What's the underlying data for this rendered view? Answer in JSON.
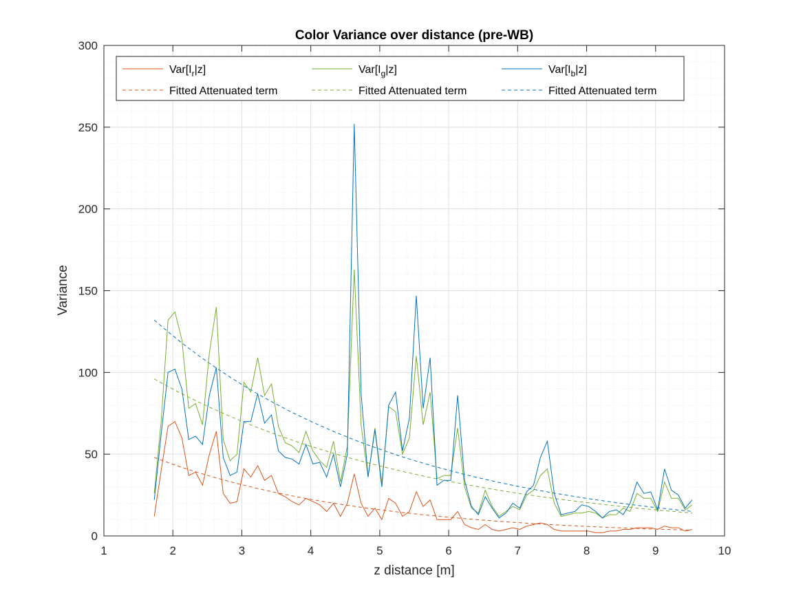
{
  "chart_data": {
    "type": "line",
    "title": "Color Variance over distance (pre-WB)",
    "xlabel": "z distance [m]",
    "ylabel": "Variance",
    "xlim": [
      1,
      10
    ],
    "ylim": [
      0,
      300
    ],
    "xticks": [
      1,
      2,
      3,
      4,
      5,
      6,
      7,
      8,
      9,
      10
    ],
    "yticks": [
      0,
      50,
      100,
      150,
      200,
      250,
      300
    ],
    "grid": "major and minor",
    "legend_position": "top",
    "x": [
      1.73,
      1.83,
      1.93,
      2.03,
      2.13,
      2.23,
      2.33,
      2.43,
      2.53,
      2.63,
      2.73,
      2.83,
      2.93,
      3.03,
      3.13,
      3.23,
      3.33,
      3.43,
      3.53,
      3.63,
      3.73,
      3.83,
      3.93,
      4.03,
      4.13,
      4.23,
      4.33,
      4.43,
      4.53,
      4.63,
      4.73,
      4.83,
      4.93,
      5.03,
      5.13,
      5.23,
      5.33,
      5.43,
      5.53,
      5.63,
      5.73,
      5.83,
      5.93,
      6.03,
      6.13,
      6.23,
      6.33,
      6.43,
      6.53,
      6.63,
      6.73,
      6.83,
      6.93,
      7.03,
      7.13,
      7.23,
      7.33,
      7.43,
      7.53,
      7.63,
      7.73,
      7.83,
      7.93,
      8.03,
      8.13,
      8.23,
      8.33,
      8.43,
      8.53,
      8.63,
      8.73,
      8.83,
      8.93,
      9.03,
      9.13,
      9.23,
      9.33,
      9.43,
      9.53
    ],
    "series": [
      {
        "name": "Var[I_r|z]",
        "label_main": "Var[I",
        "label_sub": "r",
        "label_end": "|z]",
        "color": "#D95319",
        "style": "solid",
        "values": [
          12,
          40,
          67,
          70,
          60,
          37,
          39,
          31,
          50,
          64,
          26,
          20,
          21,
          41,
          36,
          43,
          34,
          37,
          26,
          24,
          21,
          19,
          23,
          21,
          19,
          15,
          20,
          12,
          20,
          38,
          20,
          12,
          17,
          10,
          23,
          20,
          12,
          15,
          27,
          18,
          22,
          10,
          10,
          10,
          15,
          7,
          5,
          4,
          7,
          4,
          3,
          4,
          5,
          4,
          6,
          7,
          8,
          7,
          4,
          3,
          3,
          3,
          3,
          3,
          2,
          2,
          3,
          3,
          4,
          4,
          5,
          5,
          5,
          4,
          6,
          5,
          5,
          3,
          4
        ]
      },
      {
        "name": "Var[I_g|z]",
        "label_main": "Var[I",
        "label_sub": "g",
        "label_end": "|z]",
        "color": "#77AC30",
        "style": "solid",
        "values": [
          26,
          70,
          132,
          137,
          120,
          78,
          81,
          68,
          112,
          140,
          59,
          46,
          50,
          94,
          88,
          109,
          86,
          93,
          67,
          57,
          55,
          51,
          64,
          52,
          46,
          42,
          58,
          33,
          55,
          163,
          68,
          36,
          66,
          32,
          79,
          76,
          50,
          60,
          110,
          68,
          88,
          35,
          37,
          37,
          66,
          30,
          17,
          14,
          28,
          18,
          12,
          15,
          18,
          16,
          25,
          28,
          37,
          41,
          20,
          12,
          13,
          14,
          14,
          15,
          14,
          11,
          13,
          13,
          17,
          15,
          26,
          23,
          23,
          15,
          33,
          23,
          23,
          16,
          19
        ]
      },
      {
        "name": "Var[I_b|z]",
        "label_main": "Var[I",
        "label_sub": "b",
        "label_end": "|z]",
        "color": "#0072BD",
        "style": "solid",
        "values": [
          22,
          62,
          100,
          102,
          90,
          59,
          61,
          56,
          86,
          103,
          48,
          37,
          39,
          70,
          70,
          87,
          69,
          74,
          52,
          48,
          47,
          44,
          56,
          44,
          45,
          36,
          50,
          30,
          50,
          252,
          87,
          36,
          65,
          30,
          80,
          88,
          52,
          72,
          147,
          78,
          109,
          31,
          34,
          34,
          86,
          34,
          18,
          13,
          24,
          17,
          11,
          14,
          20,
          17,
          27,
          31,
          48,
          58,
          26,
          13,
          14,
          15,
          19,
          18,
          15,
          11,
          15,
          16,
          13,
          20,
          33,
          26,
          27,
          16,
          41,
          28,
          25,
          17,
          22
        ]
      },
      {
        "name": "Fitted Attenuated term (red)",
        "label_main": "Fitted Attenuated term",
        "color": "#D95319",
        "style": "dashed",
        "start": 48,
        "end": 3.5
      },
      {
        "name": "Fitted Attenuated term (green)",
        "label_main": "Fitted Attenuated term",
        "color": "#77AC30",
        "style": "dashed",
        "start": 96,
        "end": 14
      },
      {
        "name": "Fitted Attenuated term (blue)",
        "label_main": "Fitted Attenuated term",
        "color": "#0072BD",
        "style": "dashed",
        "start": 132,
        "end": 15
      }
    ]
  }
}
